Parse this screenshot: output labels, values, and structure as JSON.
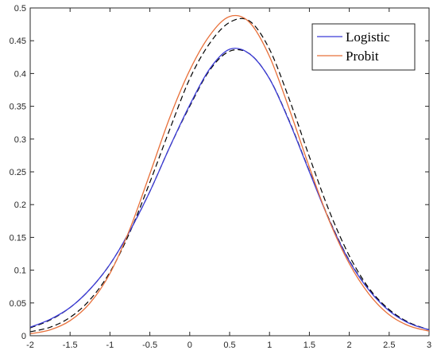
{
  "chart_data": {
    "type": "line",
    "title": "",
    "xlabel": "",
    "ylabel": "",
    "xlim": [
      -2,
      3
    ],
    "ylim": [
      0,
      0.5
    ],
    "xticks": [
      "-2",
      "-1.5",
      "-1",
      "-0.5",
      "0",
      "0.5",
      "1",
      "1.5",
      "2",
      "2.5",
      "3"
    ],
    "yticks": [
      "0",
      "0.05",
      "0.1",
      "0.15",
      "0.2",
      "0.25",
      "0.3",
      "0.35",
      "0.4",
      "0.45",
      "0.5"
    ],
    "grid": false,
    "legend_position": "top-right",
    "x": [
      -2,
      -1.75,
      -1.5,
      -1.25,
      -1,
      -0.75,
      -0.5,
      -0.25,
      0,
      0.25,
      0.5,
      0.75,
      1,
      1.25,
      1.5,
      1.75,
      2,
      2.25,
      2.5,
      2.75,
      3
    ],
    "series": [
      {
        "name": "Logistic",
        "color": "#3b3bd6",
        "style": "solid",
        "values": [
          0.013,
          0.025,
          0.043,
          0.071,
          0.109,
          0.16,
          0.22,
          0.288,
          0.352,
          0.407,
          0.437,
          0.43,
          0.392,
          0.326,
          0.25,
          0.176,
          0.114,
          0.069,
          0.038,
          0.019,
          0.009
        ]
      },
      {
        "name": "Probit",
        "color": "#e8703a",
        "style": "solid",
        "values": [
          0.003,
          0.009,
          0.023,
          0.05,
          0.095,
          0.163,
          0.247,
          0.333,
          0.405,
          0.458,
          0.487,
          0.478,
          0.426,
          0.345,
          0.257,
          0.175,
          0.11,
          0.063,
          0.032,
          0.015,
          0.007
        ]
      },
      {
        "color": "#000000",
        "style": "dashed",
        "values": [
          0.012,
          0.024,
          0.043,
          0.071,
          0.109,
          0.16,
          0.22,
          0.288,
          0.35,
          0.405,
          0.434,
          0.43,
          0.392,
          0.327,
          0.251,
          0.177,
          0.115,
          0.07,
          0.039,
          0.02,
          0.009
        ]
      },
      {
        "color": "#000000",
        "style": "dashed",
        "values": [
          0.006,
          0.013,
          0.028,
          0.055,
          0.097,
          0.158,
          0.234,
          0.315,
          0.392,
          0.446,
          0.478,
          0.48,
          0.437,
          0.36,
          0.273,
          0.19,
          0.122,
          0.072,
          0.04,
          0.02,
          0.009
        ]
      }
    ]
  }
}
